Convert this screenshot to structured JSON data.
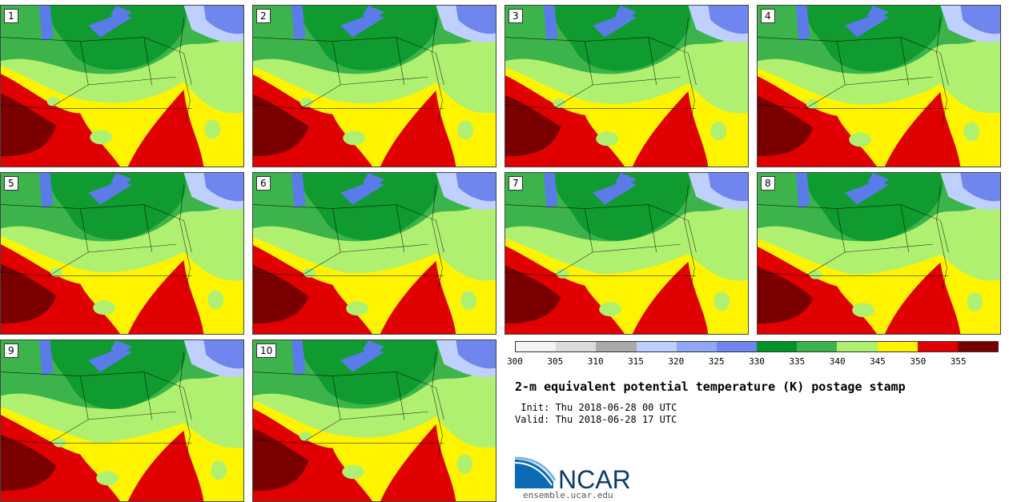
{
  "panels": [
    {
      "label": "1"
    },
    {
      "label": "2"
    },
    {
      "label": "3"
    },
    {
      "label": "4"
    },
    {
      "label": "5"
    },
    {
      "label": "6"
    },
    {
      "label": "7"
    },
    {
      "label": "8"
    },
    {
      "label": "9"
    },
    {
      "label": "10"
    }
  ],
  "colorbar": {
    "colors": [
      "#f4f4f4",
      "#dcdcdc",
      "#a9a9a9",
      "#bfd0ff",
      "#8fa7f5",
      "#6f86ee",
      "#009326",
      "#3cb44b",
      "#b0f070",
      "#fff400",
      "#e00000",
      "#7a0000"
    ],
    "ticks": [
      "300",
      "305",
      "310",
      "315",
      "320",
      "325",
      "330",
      "335",
      "340",
      "345",
      "350",
      "355"
    ]
  },
  "map_colors": {
    "dark_green": "#009326",
    "green": "#3cb44b",
    "light_green": "#b0f070",
    "yellow": "#fff400",
    "red": "#e00000",
    "dark_red": "#7a0000",
    "blue": "#6f86ee",
    "light_blue": "#bfd0ff",
    "lake": "#5a7be8"
  },
  "title": "2-m equivalent potential temperature (K) postage stamp",
  "init": " Init: Thu 2018-06-28 00 UTC",
  "valid": "Valid: Thu 2018-06-28 17 UTC",
  "logo": {
    "text": "NCAR",
    "url": "ensemble.ucar.edu"
  }
}
